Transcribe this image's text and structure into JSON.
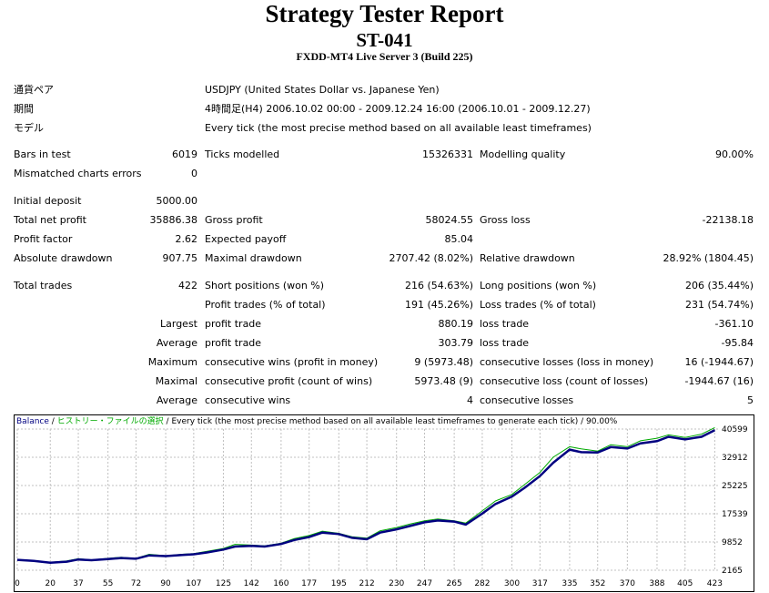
{
  "header": {
    "title": "Strategy Tester Report",
    "expert": "ST-041",
    "server": "FXDD-MT4 Live Server 3 (Build 225)"
  },
  "info": {
    "symbol_label": "通貨ペア",
    "symbol_value": "USDJPY (United States Dollar vs. Japanese Yen)",
    "period_label": "期間",
    "period_value": "4時間足(H4) 2006.10.02 00:00 - 2009.12.24 16:00 (2006.10.01 - 2009.12.27)",
    "model_label": "モデル",
    "model_value": "Every tick (the most precise method based on all available least timeframes)"
  },
  "stats": {
    "bars_label": "Bars in test",
    "bars_value": "6019",
    "ticks_label": "Ticks modelled",
    "ticks_value": "15326331",
    "quality_label": "Modelling quality",
    "quality_value": "90.00%",
    "mismatch_label": "Mismatched charts errors",
    "mismatch_value": "0",
    "deposit_label": "Initial deposit",
    "deposit_value": "5000.00",
    "net_label": "Total net profit",
    "net_value": "35886.38",
    "gross_profit_label": "Gross profit",
    "gross_profit_value": "58024.55",
    "gross_loss_label": "Gross loss",
    "gross_loss_value": "-22138.18",
    "pf_label": "Profit factor",
    "pf_value": "2.62",
    "payoff_label": "Expected payoff",
    "payoff_value": "85.04",
    "abs_dd_label": "Absolute drawdown",
    "abs_dd_value": "907.75",
    "max_dd_label": "Maximal drawdown",
    "max_dd_value": "2707.42 (8.02%)",
    "rel_dd_label": "Relative drawdown",
    "rel_dd_value": "28.92% (1804.45)",
    "trades_label": "Total trades",
    "trades_value": "422",
    "short_label": "Short positions (won %)",
    "short_value": "216 (54.63%)",
    "long_label": "Long positions (won %)",
    "long_value": "206 (35.44%)",
    "pt_label": "Profit trades (% of total)",
    "pt_value": "191 (45.26%)",
    "lt_label": "Loss trades (% of total)",
    "lt_value": "231 (54.74%)",
    "largest_label": "Largest",
    "largest_profit_label": "profit trade",
    "largest_profit_value": "880.19",
    "largest_loss_label": "loss trade",
    "largest_loss_value": "-361.10",
    "average_label": "Average",
    "average_profit_label": "profit trade",
    "average_profit_value": "303.79",
    "average_loss_label": "loss trade",
    "average_loss_value": "-95.84",
    "maximum_label": "Maximum",
    "max_cw_label": "consecutive wins (profit in money)",
    "max_cw_value": "9 (5973.48)",
    "max_cl_label": "consecutive losses (loss in money)",
    "max_cl_value": "16 (-1944.67)",
    "maximal_label": "Maximal",
    "maximal_cp_label": "consecutive profit (count of wins)",
    "maximal_cp_value": "5973.48 (9)",
    "maximal_cl_label": "consecutive loss (count of losses)",
    "maximal_cl_value": "-1944.67 (16)",
    "avg2_label": "Average",
    "avg_cw_label": "consecutive wins",
    "avg_cw_value": "4",
    "avg_cl_label": "consecutive losses",
    "avg_cl_value": "5"
  },
  "chart": {
    "caption_balance": "Balance",
    "caption_sep1": " / ",
    "caption_history": "ヒストリー・ファイルの選択",
    "caption_rest": " / Every tick (the most precise method based on all available least timeframes to generate each tick) / 90.00%",
    "balance_color": "#000080",
    "equity_color": "#00aa00",
    "history_color": "#00aa00",
    "grid_color": "#c0c0c0"
  },
  "chart_data": {
    "type": "line",
    "x_ticks": [
      "0",
      "20",
      "37",
      "55",
      "72",
      "90",
      "107",
      "125",
      "142",
      "160",
      "177",
      "195",
      "212",
      "230",
      "247",
      "265",
      "282",
      "300",
      "317",
      "335",
      "352",
      "370",
      "388",
      "405",
      "423"
    ],
    "y_ticks": [
      "40599",
      "32912",
      "25225",
      "17539",
      "9852",
      "2165"
    ],
    "ylim": [
      2165,
      40599
    ],
    "xlim": [
      0,
      425
    ],
    "series": [
      {
        "name": "Balance",
        "points": [
          [
            0,
            5000
          ],
          [
            10,
            4700
          ],
          [
            20,
            4200
          ],
          [
            30,
            4500
          ],
          [
            37,
            5100
          ],
          [
            45,
            4900
          ],
          [
            55,
            5200
          ],
          [
            63,
            5500
          ],
          [
            72,
            5300
          ],
          [
            80,
            6200
          ],
          [
            90,
            6000
          ],
          [
            100,
            6300
          ],
          [
            107,
            6500
          ],
          [
            115,
            7000
          ],
          [
            125,
            7800
          ],
          [
            132,
            8600
          ],
          [
            142,
            8800
          ],
          [
            150,
            8600
          ],
          [
            160,
            9300
          ],
          [
            168,
            10400
          ],
          [
            177,
            11200
          ],
          [
            185,
            12400
          ],
          [
            195,
            12000
          ],
          [
            203,
            11000
          ],
          [
            212,
            10600
          ],
          [
            220,
            12400
          ],
          [
            230,
            13300
          ],
          [
            238,
            14200
          ],
          [
            247,
            15200
          ],
          [
            255,
            15700
          ],
          [
            265,
            15400
          ],
          [
            272,
            14600
          ],
          [
            282,
            17600
          ],
          [
            290,
            20200
          ],
          [
            300,
            22200
          ],
          [
            308,
            24700
          ],
          [
            317,
            27800
          ],
          [
            325,
            31400
          ],
          [
            335,
            35000
          ],
          [
            342,
            34300
          ],
          [
            352,
            34200
          ],
          [
            360,
            35700
          ],
          [
            370,
            35300
          ],
          [
            378,
            36700
          ],
          [
            388,
            37300
          ],
          [
            395,
            38500
          ],
          [
            405,
            37800
          ],
          [
            415,
            38500
          ],
          [
            423,
            40300
          ]
        ]
      },
      {
        "name": "Equity",
        "points": [
          [
            0,
            5000
          ],
          [
            10,
            4800
          ],
          [
            20,
            4300
          ],
          [
            30,
            4700
          ],
          [
            37,
            5300
          ],
          [
            45,
            5000
          ],
          [
            55,
            5400
          ],
          [
            63,
            5700
          ],
          [
            72,
            5400
          ],
          [
            80,
            6500
          ],
          [
            90,
            6100
          ],
          [
            100,
            6500
          ],
          [
            107,
            6700
          ],
          [
            115,
            7300
          ],
          [
            125,
            8100
          ],
          [
            132,
            9200
          ],
          [
            142,
            9000
          ],
          [
            150,
            8800
          ],
          [
            160,
            9500
          ],
          [
            168,
            10800
          ],
          [
            177,
            11600
          ],
          [
            185,
            12800
          ],
          [
            195,
            12200
          ],
          [
            203,
            11300
          ],
          [
            212,
            10900
          ],
          [
            220,
            12900
          ],
          [
            230,
            13800
          ],
          [
            238,
            14700
          ],
          [
            247,
            15600
          ],
          [
            255,
            16100
          ],
          [
            265,
            15600
          ],
          [
            272,
            15000
          ],
          [
            282,
            18300
          ],
          [
            290,
            21000
          ],
          [
            300,
            22800
          ],
          [
            308,
            25600
          ],
          [
            317,
            28800
          ],
          [
            325,
            32900
          ],
          [
            335,
            35800
          ],
          [
            342,
            35200
          ],
          [
            352,
            34600
          ],
          [
            360,
            36300
          ],
          [
            370,
            35800
          ],
          [
            378,
            37400
          ],
          [
            388,
            38100
          ],
          [
            395,
            39000
          ],
          [
            405,
            38300
          ],
          [
            415,
            39200
          ],
          [
            423,
            41000
          ]
        ]
      }
    ]
  }
}
